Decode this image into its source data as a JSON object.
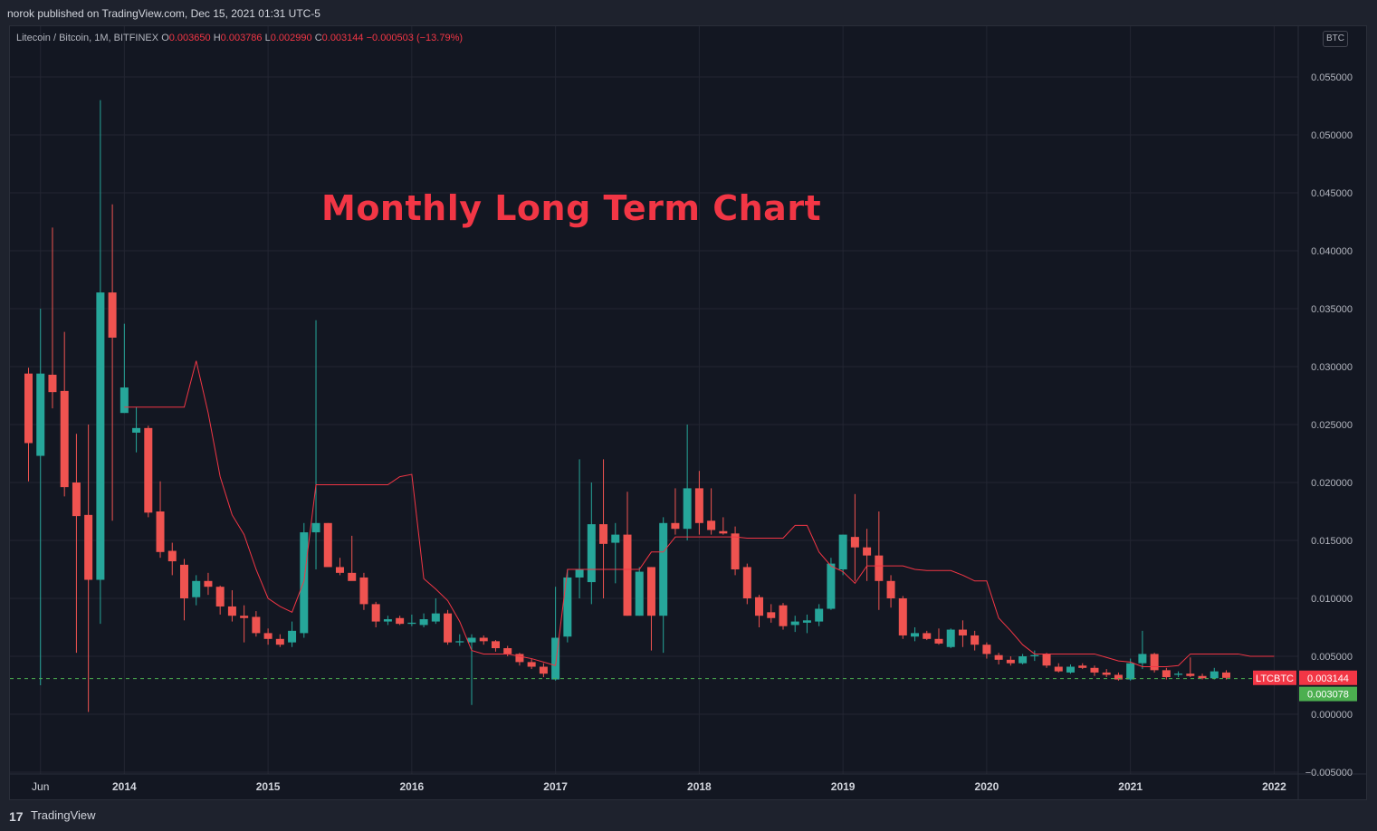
{
  "header": {
    "published": "norok published on TradingView.com, Dec 15, 2021 01:31 UTC-5"
  },
  "legend": {
    "symbol": "Litecoin / Bitcoin, 1M, BITFINEX",
    "o_label": "O",
    "o_value": "0.003650",
    "h_label": "H",
    "h_value": "0.003786",
    "l_label": "L",
    "l_value": "0.002990",
    "c_label": "C",
    "c_value": "0.003144",
    "change": "−0.000503 (−13.79%)"
  },
  "currency_badge": "BTC",
  "annotation": "Monthly Long Term Chart",
  "footer": {
    "brand": "TradingView",
    "logo": "17"
  },
  "colors": {
    "up": "#26a69a",
    "down": "#ef5350",
    "line": "#f23645",
    "grid": "#232632",
    "axis_text": "#b2b5be",
    "price_line": "#4caf50"
  },
  "chart_data": {
    "type": "candlestick",
    "title": "Monthly Long Term Chart",
    "xlabel": "",
    "ylabel": "",
    "y_axis_label": "BTC",
    "ylim": [
      -0.005,
      0.0575
    ],
    "y_ticks": [
      "0.055000",
      "0.050000",
      "0.045000",
      "0.040000",
      "0.035000",
      "0.030000",
      "0.025000",
      "0.020000",
      "0.015000",
      "0.010000",
      "0.005000",
      "0.000000",
      "−0.005000"
    ],
    "y_tick_values": [
      0.055,
      0.05,
      0.045,
      0.04,
      0.035,
      0.03,
      0.025,
      0.02,
      0.015,
      0.01,
      0.005,
      0.0,
      -0.005
    ],
    "x_ticks": [
      "Jun",
      "2014",
      "2015",
      "2016",
      "2017",
      "2018",
      "2019",
      "2020",
      "2021",
      "2022"
    ],
    "x_tick_months": [
      "2013-06",
      "2014-01",
      "2015-01",
      "2016-01",
      "2017-01",
      "2018-01",
      "2019-01",
      "2020-01",
      "2021-01",
      "2022-01"
    ],
    "start_month": "2013-05",
    "grid": true,
    "last_price_label": {
      "name": "LTCBTC",
      "value": "0.003144",
      "color": "#f23645"
    },
    "line_price_label": {
      "value": "0.003078",
      "color": "#4caf50"
    },
    "candles": [
      {
        "o": 0.0294,
        "h": 0.0299,
        "l": 0.0201,
        "c": 0.0234
      },
      {
        "o": 0.0223,
        "h": 0.035,
        "l": 0.0025,
        "c": 0.0294
      },
      {
        "o": 0.0293,
        "h": 0.042,
        "l": 0.0264,
        "c": 0.0278
      },
      {
        "o": 0.0279,
        "h": 0.033,
        "l": 0.0188,
        "c": 0.0196
      },
      {
        "o": 0.02,
        "h": 0.0242,
        "l": 0.0053,
        "c": 0.0171
      },
      {
        "o": 0.0172,
        "h": 0.025,
        "l": 0.0002,
        "c": 0.0116
      },
      {
        "o": 0.0116,
        "h": 0.053,
        "l": 0.0078,
        "c": 0.0364
      },
      {
        "o": 0.0364,
        "h": 0.044,
        "l": 0.0167,
        "c": 0.0325
      },
      {
        "o": 0.026,
        "h": 0.0337,
        "l": 0.026,
        "c": 0.0282
      },
      {
        "o": 0.0243,
        "h": 0.0265,
        "l": 0.0226,
        "c": 0.0247
      },
      {
        "o": 0.0247,
        "h": 0.0249,
        "l": 0.017,
        "c": 0.0174
      },
      {
        "o": 0.0175,
        "h": 0.0201,
        "l": 0.0135,
        "c": 0.014
      },
      {
        "o": 0.0141,
        "h": 0.0148,
        "l": 0.012,
        "c": 0.0132
      },
      {
        "o": 0.0129,
        "h": 0.0134,
        "l": 0.0081,
        "c": 0.01
      },
      {
        "o": 0.0101,
        "h": 0.012,
        "l": 0.0094,
        "c": 0.0115
      },
      {
        "o": 0.0115,
        "h": 0.0122,
        "l": 0.0103,
        "c": 0.011
      },
      {
        "o": 0.011,
        "h": 0.0111,
        "l": 0.0086,
        "c": 0.0093
      },
      {
        "o": 0.0093,
        "h": 0.0107,
        "l": 0.008,
        "c": 0.0085
      },
      {
        "o": 0.0085,
        "h": 0.0094,
        "l": 0.0062,
        "c": 0.0083
      },
      {
        "o": 0.0084,
        "h": 0.0089,
        "l": 0.0067,
        "c": 0.007
      },
      {
        "o": 0.007,
        "h": 0.0074,
        "l": 0.006,
        "c": 0.0065
      },
      {
        "o": 0.0065,
        "h": 0.0069,
        "l": 0.0058,
        "c": 0.006
      },
      {
        "o": 0.0062,
        "h": 0.008,
        "l": 0.0058,
        "c": 0.0072
      },
      {
        "o": 0.007,
        "h": 0.0165,
        "l": 0.0066,
        "c": 0.0157
      },
      {
        "o": 0.0157,
        "h": 0.034,
        "l": 0.0125,
        "c": 0.0165
      },
      {
        "o": 0.0165,
        "h": 0.0165,
        "l": 0.0131,
        "c": 0.0127
      },
      {
        "o": 0.0127,
        "h": 0.0135,
        "l": 0.012,
        "c": 0.0122
      },
      {
        "o": 0.0122,
        "h": 0.0154,
        "l": 0.012,
        "c": 0.0115
      },
      {
        "o": 0.0118,
        "h": 0.0122,
        "l": 0.009,
        "c": 0.0095
      },
      {
        "o": 0.0095,
        "h": 0.0097,
        "l": 0.0075,
        "c": 0.008
      },
      {
        "o": 0.008,
        "h": 0.0085,
        "l": 0.0077,
        "c": 0.0082
      },
      {
        "o": 0.0083,
        "h": 0.0085,
        "l": 0.0077,
        "c": 0.0078
      },
      {
        "o": 0.0078,
        "h": 0.0086,
        "l": 0.0076,
        "c": 0.0079
      },
      {
        "o": 0.0077,
        "h": 0.0087,
        "l": 0.0075,
        "c": 0.0082
      },
      {
        "o": 0.008,
        "h": 0.01,
        "l": 0.0078,
        "c": 0.0087
      },
      {
        "o": 0.0087,
        "h": 0.009,
        "l": 0.006,
        "c": 0.0062
      },
      {
        "o": 0.0062,
        "h": 0.0069,
        "l": 0.0059,
        "c": 0.0063
      },
      {
        "o": 0.0062,
        "h": 0.0069,
        "l": 0.0008,
        "c": 0.0066
      },
      {
        "o": 0.0066,
        "h": 0.0068,
        "l": 0.006,
        "c": 0.0063
      },
      {
        "o": 0.0063,
        "h": 0.0064,
        "l": 0.0054,
        "c": 0.0057
      },
      {
        "o": 0.0057,
        "h": 0.0059,
        "l": 0.005,
        "c": 0.0052
      },
      {
        "o": 0.0052,
        "h": 0.0053,
        "l": 0.0042,
        "c": 0.0045
      },
      {
        "o": 0.0045,
        "h": 0.0048,
        "l": 0.0039,
        "c": 0.0041
      },
      {
        "o": 0.0041,
        "h": 0.0044,
        "l": 0.0032,
        "c": 0.0035
      },
      {
        "o": 0.003,
        "h": 0.011,
        "l": 0.0029,
        "c": 0.0066
      },
      {
        "o": 0.0067,
        "h": 0.0125,
        "l": 0.0062,
        "c": 0.0118
      },
      {
        "o": 0.0118,
        "h": 0.022,
        "l": 0.01,
        "c": 0.0125
      },
      {
        "o": 0.0114,
        "h": 0.02,
        "l": 0.0095,
        "c": 0.0164
      },
      {
        "o": 0.0164,
        "h": 0.022,
        "l": 0.01,
        "c": 0.0147
      },
      {
        "o": 0.0148,
        "h": 0.0165,
        "l": 0.0113,
        "c": 0.0155
      },
      {
        "o": 0.0155,
        "h": 0.0192,
        "l": 0.0085,
        "c": 0.0085
      },
      {
        "o": 0.0085,
        "h": 0.0127,
        "l": 0.0085,
        "c": 0.0123
      },
      {
        "o": 0.0127,
        "h": 0.0127,
        "l": 0.0055,
        "c": 0.0085
      },
      {
        "o": 0.0085,
        "h": 0.017,
        "l": 0.0053,
        "c": 0.0165
      },
      {
        "o": 0.0165,
        "h": 0.0195,
        "l": 0.0155,
        "c": 0.016
      },
      {
        "o": 0.016,
        "h": 0.025,
        "l": 0.015,
        "c": 0.0195
      },
      {
        "o": 0.0195,
        "h": 0.021,
        "l": 0.0155,
        "c": 0.0165
      },
      {
        "o": 0.0167,
        "h": 0.0195,
        "l": 0.0155,
        "c": 0.0159
      },
      {
        "o": 0.0158,
        "h": 0.017,
        "l": 0.0155,
        "c": 0.0156
      },
      {
        "o": 0.0156,
        "h": 0.0162,
        "l": 0.012,
        "c": 0.0125
      },
      {
        "o": 0.0127,
        "h": 0.013,
        "l": 0.0095,
        "c": 0.01
      },
      {
        "o": 0.0101,
        "h": 0.0103,
        "l": 0.0075,
        "c": 0.0085
      },
      {
        "o": 0.0088,
        "h": 0.0095,
        "l": 0.0079,
        "c": 0.0083
      },
      {
        "o": 0.0094,
        "h": 0.0096,
        "l": 0.0073,
        "c": 0.0076
      },
      {
        "o": 0.0077,
        "h": 0.0085,
        "l": 0.0071,
        "c": 0.008
      },
      {
        "o": 0.0079,
        "h": 0.0086,
        "l": 0.007,
        "c": 0.0081
      },
      {
        "o": 0.008,
        "h": 0.0095,
        "l": 0.0076,
        "c": 0.0091
      },
      {
        "o": 0.0091,
        "h": 0.0135,
        "l": 0.009,
        "c": 0.013
      },
      {
        "o": 0.0125,
        "h": 0.0155,
        "l": 0.012,
        "c": 0.0155
      },
      {
        "o": 0.0153,
        "h": 0.019,
        "l": 0.0115,
        "c": 0.0144
      },
      {
        "o": 0.0144,
        "h": 0.016,
        "l": 0.0115,
        "c": 0.0137
      },
      {
        "o": 0.0137,
        "h": 0.0175,
        "l": 0.009,
        "c": 0.0115
      },
      {
        "o": 0.0115,
        "h": 0.012,
        "l": 0.0092,
        "c": 0.01
      },
      {
        "o": 0.01,
        "h": 0.0102,
        "l": 0.0065,
        "c": 0.0068
      },
      {
        "o": 0.0067,
        "h": 0.0075,
        "l": 0.0063,
        "c": 0.007
      },
      {
        "o": 0.007,
        "h": 0.0072,
        "l": 0.0064,
        "c": 0.0065
      },
      {
        "o": 0.0065,
        "h": 0.0074,
        "l": 0.006,
        "c": 0.0061
      },
      {
        "o": 0.0058,
        "h": 0.0074,
        "l": 0.0057,
        "c": 0.0073
      },
      {
        "o": 0.0073,
        "h": 0.0081,
        "l": 0.0058,
        "c": 0.0068
      },
      {
        "o": 0.0068,
        "h": 0.0072,
        "l": 0.0055,
        "c": 0.006
      },
      {
        "o": 0.006,
        "h": 0.0062,
        "l": 0.0048,
        "c": 0.0052
      },
      {
        "o": 0.0051,
        "h": 0.0053,
        "l": 0.0043,
        "c": 0.0047
      },
      {
        "o": 0.0047,
        "h": 0.005,
        "l": 0.0042,
        "c": 0.0044
      },
      {
        "o": 0.0044,
        "h": 0.0052,
        "l": 0.0043,
        "c": 0.005
      },
      {
        "o": 0.005,
        "h": 0.0055,
        "l": 0.0046,
        "c": 0.0051
      },
      {
        "o": 0.0052,
        "h": 0.0053,
        "l": 0.004,
        "c": 0.0042
      },
      {
        "o": 0.0041,
        "h": 0.0044,
        "l": 0.0036,
        "c": 0.0037
      },
      {
        "o": 0.0036,
        "h": 0.0043,
        "l": 0.0035,
        "c": 0.0041
      },
      {
        "o": 0.0042,
        "h": 0.0044,
        "l": 0.0039,
        "c": 0.004
      },
      {
        "o": 0.004,
        "h": 0.0042,
        "l": 0.0033,
        "c": 0.0036
      },
      {
        "o": 0.0036,
        "h": 0.0039,
        "l": 0.0032,
        "c": 0.0034
      },
      {
        "o": 0.0034,
        "h": 0.0036,
        "l": 0.0029,
        "c": 0.003
      },
      {
        "o": 0.003,
        "h": 0.0048,
        "l": 0.0029,
        "c": 0.0044
      },
      {
        "o": 0.0044,
        "h": 0.0072,
        "l": 0.0039,
        "c": 0.0052
      },
      {
        "o": 0.0052,
        "h": 0.0053,
        "l": 0.0036,
        "c": 0.0038
      },
      {
        "o": 0.0038,
        "h": 0.004,
        "l": 0.003,
        "c": 0.0032
      },
      {
        "o": 0.0034,
        "h": 0.0037,
        "l": 0.0032,
        "c": 0.0035
      },
      {
        "o": 0.0035,
        "h": 0.0049,
        "l": 0.0032,
        "c": 0.0033
      },
      {
        "o": 0.0033,
        "h": 0.0035,
        "l": 0.003,
        "c": 0.0031
      },
      {
        "o": 0.0031,
        "h": 0.004,
        "l": 0.003,
        "c": 0.0037
      },
      {
        "o": 0.0036,
        "h": 0.0038,
        "l": 0.003,
        "c": 0.00314
      }
    ],
    "line": [
      {
        "m": 8,
        "v": 0.0265
      },
      {
        "m": 13,
        "v": 0.0265
      },
      {
        "m": 14,
        "v": 0.0305
      },
      {
        "m": 15,
        "v": 0.026
      },
      {
        "m": 16,
        "v": 0.0205
      },
      {
        "m": 17,
        "v": 0.0172
      },
      {
        "m": 18,
        "v": 0.0155
      },
      {
        "m": 19,
        "v": 0.0125
      },
      {
        "m": 20,
        "v": 0.01
      },
      {
        "m": 21,
        "v": 0.0093
      },
      {
        "m": 22,
        "v": 0.0088
      },
      {
        "m": 23,
        "v": 0.0115
      },
      {
        "m": 24,
        "v": 0.0198
      },
      {
        "m": 30,
        "v": 0.0198
      },
      {
        "m": 31,
        "v": 0.0205
      },
      {
        "m": 32,
        "v": 0.0207
      },
      {
        "m": 33,
        "v": 0.0117
      },
      {
        "m": 34,
        "v": 0.0108
      },
      {
        "m": 35,
        "v": 0.0098
      },
      {
        "m": 36,
        "v": 0.008
      },
      {
        "m": 37,
        "v": 0.0055
      },
      {
        "m": 38,
        "v": 0.0052
      },
      {
        "m": 40,
        "v": 0.0052
      },
      {
        "m": 41,
        "v": 0.005
      },
      {
        "m": 42,
        "v": 0.0048
      },
      {
        "m": 43,
        "v": 0.0045
      },
      {
        "m": 44,
        "v": 0.0042
      },
      {
        "m": 45,
        "v": 0.0125
      },
      {
        "m": 51,
        "v": 0.0125
      },
      {
        "m": 52,
        "v": 0.014
      },
      {
        "m": 53,
        "v": 0.014
      },
      {
        "m": 54,
        "v": 0.0153
      },
      {
        "m": 59,
        "v": 0.0153
      },
      {
        "m": 60,
        "v": 0.0152
      },
      {
        "m": 63,
        "v": 0.0152
      },
      {
        "m": 64,
        "v": 0.0163
      },
      {
        "m": 65,
        "v": 0.0163
      },
      {
        "m": 66,
        "v": 0.014
      },
      {
        "m": 67,
        "v": 0.0128
      },
      {
        "m": 68,
        "v": 0.0123
      },
      {
        "m": 69,
        "v": 0.0113
      },
      {
        "m": 70,
        "v": 0.0128
      },
      {
        "m": 73,
        "v": 0.0128
      },
      {
        "m": 74,
        "v": 0.0125
      },
      {
        "m": 75,
        "v": 0.0124
      },
      {
        "m": 77,
        "v": 0.0124
      },
      {
        "m": 78,
        "v": 0.012
      },
      {
        "m": 79,
        "v": 0.0115
      },
      {
        "m": 80,
        "v": 0.0115
      },
      {
        "m": 81,
        "v": 0.0083
      },
      {
        "m": 82,
        "v": 0.0072
      },
      {
        "m": 83,
        "v": 0.006
      },
      {
        "m": 84,
        "v": 0.0052
      },
      {
        "m": 89,
        "v": 0.0052
      },
      {
        "m": 90,
        "v": 0.0049
      },
      {
        "m": 91,
        "v": 0.0046
      },
      {
        "m": 92,
        "v": 0.0045
      },
      {
        "m": 93,
        "v": 0.0041
      },
      {
        "m": 95,
        "v": 0.0041
      },
      {
        "m": 96,
        "v": 0.0042
      },
      {
        "m": 97,
        "v": 0.0052
      },
      {
        "m": 101,
        "v": 0.0052
      },
      {
        "m": 102,
        "v": 0.005
      },
      {
        "m": 104,
        "v": 0.005
      }
    ]
  }
}
